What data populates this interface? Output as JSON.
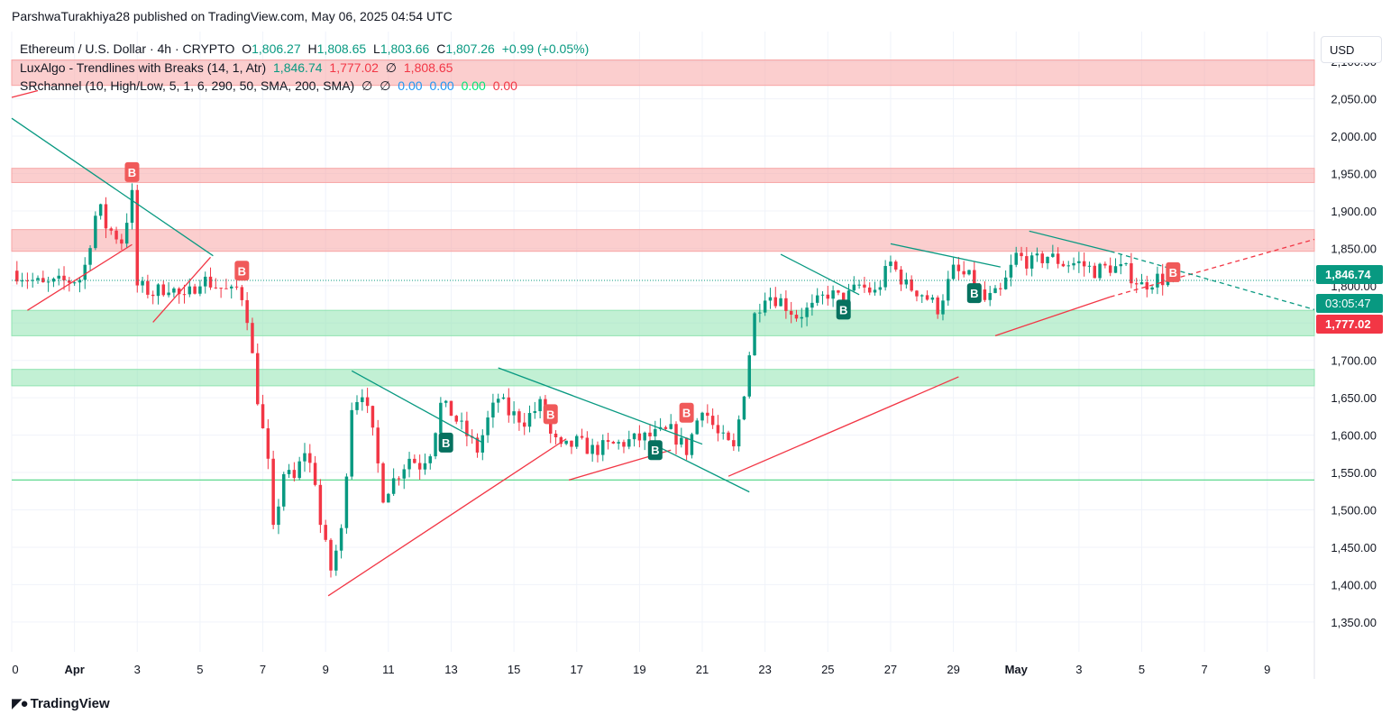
{
  "header": {
    "attribution": "ParshwaTurakhiya28 published on TradingView.com, May 06, 2025 04:54 UTC"
  },
  "legend": {
    "symbol": "Ethereum / U.S. Dollar · 4h · CRYPTO",
    "o_label": "O",
    "o_value": "1,806.27",
    "h_label": "H",
    "h_value": "1,808.65",
    "l_label": "L",
    "l_value": "1,803.66",
    "c_label": "C",
    "c_value": "1,807.26",
    "change": "+0.99 (+0.05%)",
    "indicator1": "LuxAlgo - Trendlines with Breaks (14, 1, Atr)",
    "ind1_v1": "1,846.74",
    "ind1_v2": "1,777.02",
    "ind1_v3": "∅",
    "ind1_v4": "1,808.65",
    "indicator2": "SRchannel (10, High/Low, 5, 1, 6, 290, 50, SMA, 200, SMA)",
    "ind2_v1": "∅",
    "ind2_v2": "∅",
    "ind2_v3": "0.00",
    "ind2_v4": "0.00",
    "ind2_v5": "0.00",
    "ind2_v6": "0.00"
  },
  "toolbar": {
    "currency": "USD"
  },
  "price_tags": {
    "upper": "1,846.74",
    "countdown": "03:05:47",
    "lower": "1,777.02"
  },
  "footer": {
    "brand": "TradingView"
  },
  "colors": {
    "up": "#089981",
    "down": "#f23645",
    "trend_up": "#f23645",
    "trend_down": "#089981",
    "resistance_zone": "#f7a5a5",
    "support_zone": "#8fe3b0",
    "grid": "#f0f3fa"
  },
  "chart_data": {
    "type": "candlestick",
    "title": "Ethereum / U.S. Dollar · 4h · CRYPTO",
    "ylim": [
      1310,
      2140
    ],
    "y_ticks": [
      1350,
      1400,
      1450,
      1500,
      1550,
      1600,
      1650,
      1700,
      1750,
      1800,
      1850,
      1900,
      1950,
      2000,
      2050,
      2100
    ],
    "y_tick_labels": [
      "1,350.00",
      "1,400.00",
      "1,450.00",
      "1,500.00",
      "1,550.00",
      "1,600.00",
      "1,650.00",
      "1,700.00",
      "1,750.00",
      "1,800.00",
      "1,850.00",
      "1,900.00",
      "1,950.00",
      "2,000.00",
      "2,050.00",
      "2,100.00"
    ],
    "x_ticks": [
      "2025-03-30",
      "2025-04-01",
      "2025-04-03",
      "2025-04-05",
      "2025-04-07",
      "2025-04-09",
      "2025-04-11",
      "2025-04-13",
      "2025-04-15",
      "2025-04-17",
      "2025-04-19",
      "2025-04-21",
      "2025-04-23",
      "2025-04-25",
      "2025-04-27",
      "2025-04-29",
      "2025-05-01",
      "2025-05-03",
      "2025-05-05",
      "2025-05-07",
      "2025-05-09"
    ],
    "x_tick_labels": [
      "0",
      "Apr",
      "3",
      "5",
      "7",
      "9",
      "11",
      "13",
      "15",
      "17",
      "19",
      "21",
      "23",
      "25",
      "27",
      "29",
      "May",
      "3",
      "5",
      "7",
      "9"
    ],
    "x_range": [
      "2025-03-30",
      "2025-05-10T12:00"
    ],
    "grid": true,
    "close_path": [
      [
        "2025-03-30",
        1820
      ],
      [
        "2025-03-31",
        1800
      ],
      [
        "2025-04-01T06:00",
        1810
      ],
      [
        "2025-04-01T18:00",
        1910
      ],
      [
        "2025-04-02",
        1880
      ],
      [
        "2025-04-02T12:00",
        1860
      ],
      [
        "2025-04-02T20:00",
        1920
      ],
      [
        "2025-04-03",
        1800
      ],
      [
        "2025-04-03T12:00",
        1790
      ],
      [
        "2025-04-04",
        1800
      ],
      [
        "2025-04-04T12:00",
        1780
      ],
      [
        "2025-04-05",
        1810
      ],
      [
        "2025-04-05T12:00",
        1800
      ],
      [
        "2025-04-06",
        1790
      ],
      [
        "2025-04-06T06:00",
        1800
      ],
      [
        "2025-04-06T12:00",
        1760
      ],
      [
        "2025-04-06T20:00",
        1650
      ],
      [
        "2025-04-07T04:00",
        1560
      ],
      [
        "2025-04-07T08:00",
        1470
      ],
      [
        "2025-04-07T16:00",
        1550
      ],
      [
        "2025-04-08",
        1540
      ],
      [
        "2025-04-08T08:00",
        1580
      ],
      [
        "2025-04-08T16:00",
        1540
      ],
      [
        "2025-04-08T20:00",
        1480
      ],
      [
        "2025-04-09T04:00",
        1420
      ],
      [
        "2025-04-09T12:00",
        1470
      ],
      [
        "2025-04-09T20:00",
        1640
      ],
      [
        "2025-04-10T04:00",
        1660
      ],
      [
        "2025-04-10T12:00",
        1600
      ],
      [
        "2025-04-10T20:00",
        1520
      ],
      [
        "2025-04-11T08:00",
        1550
      ],
      [
        "2025-04-11T16:00",
        1570
      ],
      [
        "2025-04-12",
        1560
      ],
      [
        "2025-04-12T08:00",
        1580
      ],
      [
        "2025-04-12T16:00",
        1640
      ],
      [
        "2025-04-13",
        1630
      ],
      [
        "2025-04-13T12:00",
        1600
      ],
      [
        "2025-04-13T20:00",
        1580
      ],
      [
        "2025-04-14T04:00",
        1620
      ],
      [
        "2025-04-14T12:00",
        1650
      ],
      [
        "2025-04-14T20:00",
        1630
      ],
      [
        "2025-04-15T08:00",
        1620
      ],
      [
        "2025-04-15T20:00",
        1640
      ],
      [
        "2025-04-16T04:00",
        1600
      ],
      [
        "2025-04-16T12:00",
        1580
      ],
      [
        "2025-04-17",
        1590
      ],
      [
        "2025-04-17T12:00",
        1580
      ],
      [
        "2025-04-18",
        1585
      ],
      [
        "2025-04-18T12:00",
        1590
      ],
      [
        "2025-04-19",
        1595
      ],
      [
        "2025-04-19T12:00",
        1600
      ],
      [
        "2025-04-20",
        1605
      ],
      [
        "2025-04-20T12:00",
        1580
      ],
      [
        "2025-04-21",
        1640
      ],
      [
        "2025-04-21T12:00",
        1600
      ],
      [
        "2025-04-22",
        1580
      ],
      [
        "2025-04-22T08:00",
        1660
      ],
      [
        "2025-04-22T16:00",
        1760
      ],
      [
        "2025-04-23",
        1790
      ],
      [
        "2025-04-23T12:00",
        1780
      ],
      [
        "2025-04-24",
        1760
      ],
      [
        "2025-04-24T12:00",
        1770
      ],
      [
        "2025-04-25",
        1790
      ],
      [
        "2025-04-25T12:00",
        1780
      ],
      [
        "2025-04-26",
        1800
      ],
      [
        "2025-04-26T12:00",
        1790
      ],
      [
        "2025-04-27",
        1830
      ],
      [
        "2025-04-27T12:00",
        1800
      ],
      [
        "2025-04-28",
        1790
      ],
      [
        "2025-04-28T12:00",
        1770
      ],
      [
        "2025-04-29",
        1820
      ],
      [
        "2025-04-29T12:00",
        1810
      ],
      [
        "2025-04-30",
        1780
      ],
      [
        "2025-04-30T12:00",
        1790
      ],
      [
        "2025-05-01",
        1840
      ],
      [
        "2025-05-01T12:00",
        1830
      ],
      [
        "2025-05-02",
        1840
      ],
      [
        "2025-05-02T12:00",
        1830
      ],
      [
        "2025-05-03",
        1830
      ],
      [
        "2025-05-03T12:00",
        1820
      ],
      [
        "2025-05-04",
        1825
      ],
      [
        "2025-05-04T12:00",
        1820
      ],
      [
        "2025-05-05",
        1800
      ],
      [
        "2025-05-05T12:00",
        1810
      ],
      [
        "2025-05-06",
        1805
      ],
      [
        "2025-05-06T04:00",
        1807
      ]
    ],
    "zones": [
      {
        "kind": "resistance",
        "low": 2068,
        "high": 2102
      },
      {
        "kind": "resistance",
        "low": 1938,
        "high": 1957
      },
      {
        "kind": "resistance",
        "low": 1846,
        "high": 1875
      },
      {
        "kind": "support",
        "low": 1733,
        "high": 1767
      },
      {
        "kind": "support",
        "low": 1666,
        "high": 1688
      },
      {
        "kind": "support_line",
        "low": 1540,
        "high": 1540
      }
    ],
    "trendlines": [
      {
        "kind": "down",
        "points": [
          [
            "2025-03-30",
            2024
          ],
          [
            "2025-04-05T10:00",
            1840
          ]
        ]
      },
      {
        "kind": "up",
        "points": [
          [
            "2025-03-30T12:00",
            1767
          ],
          [
            "2025-04-02T20:00",
            1855
          ]
        ]
      },
      {
        "kind": "up",
        "points": [
          [
            "2025-03-30",
            2052
          ],
          [
            "2025-03-30T20:00",
            2061
          ]
        ]
      },
      {
        "kind": "up",
        "points": [
          [
            "2025-04-03T12:00",
            1751
          ],
          [
            "2025-04-05T08:00",
            1838
          ]
        ]
      },
      {
        "kind": "up",
        "points": [
          [
            "2025-04-09T02:00",
            1385
          ],
          [
            "2025-04-16T16:00",
            1595
          ]
        ]
      },
      {
        "kind": "down",
        "points": [
          [
            "2025-04-09T20:00",
            1686
          ],
          [
            "2025-04-14T00:00",
            1590
          ]
        ]
      },
      {
        "kind": "down",
        "points": [
          [
            "2025-04-14T12:00",
            1690
          ],
          [
            "2025-04-21T00:00",
            1588
          ]
        ]
      },
      {
        "kind": "up",
        "points": [
          [
            "2025-04-16T18:00",
            1540
          ],
          [
            "2025-04-20T00:00",
            1580
          ]
        ]
      },
      {
        "kind": "down",
        "points": [
          [
            "2025-04-19T16:00",
            1583
          ],
          [
            "2025-04-22T12:00",
            1524
          ]
        ]
      },
      {
        "kind": "up",
        "points": [
          [
            "2025-04-21T20:00",
            1545
          ],
          [
            "2025-04-29T04:00",
            1678
          ]
        ]
      },
      {
        "kind": "down",
        "points": [
          [
            "2025-04-23T12:00",
            1842
          ],
          [
            "2025-04-26T00:00",
            1788
          ]
        ]
      },
      {
        "kind": "down",
        "points": [
          [
            "2025-04-27T00:00",
            1856
          ],
          [
            "2025-04-30T12:00",
            1825
          ]
        ]
      },
      {
        "kind": "up",
        "points": [
          [
            "2025-04-30T08:00",
            1733
          ],
          [
            "2025-05-04T00:00",
            1785
          ]
        ]
      },
      {
        "kind": "down",
        "points": [
          [
            "2025-05-01T10:00",
            1873
          ],
          [
            "2025-05-04T00:00",
            1846
          ]
        ]
      },
      {
        "kind": "up_dashed",
        "points": [
          [
            "2025-05-04T00:00",
            1785
          ],
          [
            "2025-05-10T12:00",
            1862
          ]
        ]
      },
      {
        "kind": "down_dashed",
        "points": [
          [
            "2025-05-04T00:00",
            1846
          ],
          [
            "2025-05-10T12:00",
            1768
          ]
        ]
      }
    ],
    "markers": [
      {
        "label": "B",
        "kind": "down",
        "at": [
          "2025-04-02T20:00",
          1952
        ]
      },
      {
        "label": "B",
        "kind": "down",
        "at": [
          "2025-04-06T08:00",
          1820
        ]
      },
      {
        "label": "B",
        "kind": "up",
        "at": [
          "2025-04-12T20:00",
          1590
        ]
      },
      {
        "label": "B",
        "kind": "down",
        "at": [
          "2025-04-16T04:00",
          1628
        ]
      },
      {
        "label": "B",
        "kind": "up",
        "at": [
          "2025-04-19T12:00",
          1580
        ]
      },
      {
        "label": "B",
        "kind": "down",
        "at": [
          "2025-04-20T12:00",
          1630
        ]
      },
      {
        "label": "B",
        "kind": "up",
        "at": [
          "2025-04-25T12:00",
          1768
        ]
      },
      {
        "label": "B",
        "kind": "up",
        "at": [
          "2025-04-29T16:00",
          1790
        ]
      },
      {
        "label": "B",
        "kind": "down",
        "at": [
          "2025-05-06T00:00",
          1818
        ]
      }
    ]
  }
}
